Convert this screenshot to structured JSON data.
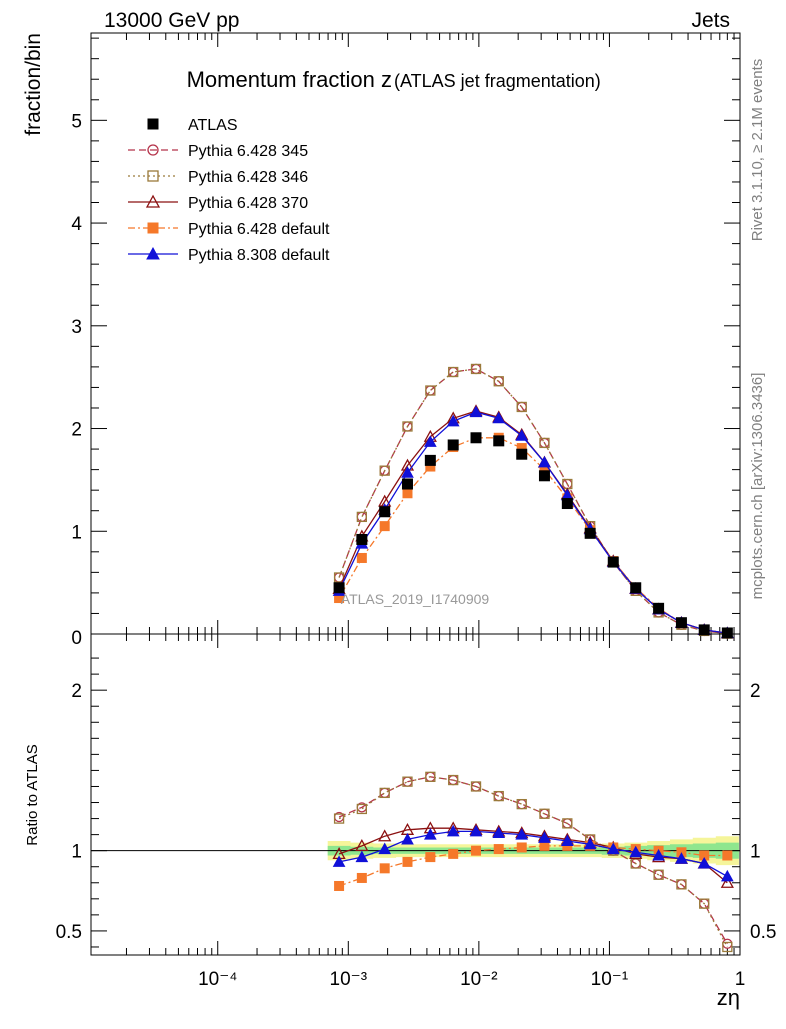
{
  "header": {
    "left": "13000 GeV pp",
    "right": "Jets",
    "side_top": "Rivet 3.1.10, ≥ 2.1M events",
    "side_bottom": "mcplots.cern.ch [arXiv:1306.3436]"
  },
  "chart_data": [
    {
      "type": "scatter",
      "panel": "main",
      "title": "Momentum fraction z",
      "subtitle": "(ATLAS jet fragmentation)",
      "ylabel": "fraction/bin",
      "watermark": "ATLAS_2019_I1740909",
      "xscale": "log",
      "xlim": [
        1.07e-05,
        1.0
      ],
      "ylim": [
        0,
        5.85
      ],
      "yticks": [
        1,
        2,
        3,
        4,
        5
      ],
      "ytick_labels": [
        "1",
        "2",
        "3",
        "4",
        "5"
      ],
      "grid": false,
      "legend_position": "top-left",
      "x": [
        0.00085,
        0.00127,
        0.0019,
        0.00284,
        0.00425,
        0.00636,
        0.00951,
        0.0142,
        0.0213,
        0.0318,
        0.0476,
        0.0712,
        0.107,
        0.159,
        0.238,
        0.356,
        0.532,
        0.8
      ],
      "series": [
        {
          "name": "ATLAS",
          "color": "#000000",
          "marker": "square-filled",
          "dash": "none",
          "values": [
            0.45,
            0.92,
            1.19,
            1.46,
            1.69,
            1.84,
            1.91,
            1.88,
            1.75,
            1.54,
            1.27,
            0.98,
            0.7,
            0.45,
            0.25,
            0.11,
            0.04,
            0.01
          ]
        },
        {
          "name": "Pythia 6.428 345",
          "color": "#b5334a",
          "marker": "circle-open",
          "dash": "7,4",
          "values": [
            0.55,
            1.14,
            1.59,
            2.02,
            2.37,
            2.55,
            2.58,
            2.46,
            2.21,
            1.86,
            1.46,
            1.05,
            0.7,
            0.42,
            0.21,
            0.09,
            0.03,
            0.004
          ]
        },
        {
          "name": "Pythia 6.428 346",
          "color": "#9a7a3a",
          "marker": "square-open",
          "dash": "2,3",
          "values": [
            0.55,
            1.14,
            1.59,
            2.02,
            2.37,
            2.55,
            2.58,
            2.46,
            2.21,
            1.86,
            1.46,
            1.05,
            0.7,
            0.42,
            0.21,
            0.09,
            0.03,
            0.004
          ]
        },
        {
          "name": "Pythia 6.428 370",
          "color": "#8b1010",
          "marker": "triangle-open",
          "dash": "none",
          "values": [
            0.44,
            0.95,
            1.29,
            1.64,
            1.92,
            2.1,
            2.17,
            2.11,
            1.94,
            1.67,
            1.36,
            1.03,
            0.71,
            0.44,
            0.24,
            0.11,
            0.04,
            0.008
          ]
        },
        {
          "name": "Pythia 6.428 default",
          "color": "#f5782a",
          "marker": "square-filled",
          "dash": "7,3,2,3",
          "values": [
            0.35,
            0.74,
            1.05,
            1.37,
            1.63,
            1.82,
            1.91,
            1.91,
            1.81,
            1.6,
            1.32,
            1.01,
            0.71,
            0.45,
            0.25,
            0.11,
            0.04,
            0.01
          ]
        },
        {
          "name": "Pythia 8.308 default",
          "color": "#1010d8",
          "marker": "triangle-filled",
          "dash": "none",
          "values": [
            0.42,
            0.88,
            1.21,
            1.57,
            1.87,
            2.07,
            2.16,
            2.1,
            1.93,
            1.67,
            1.35,
            1.02,
            0.7,
            0.44,
            0.24,
            0.11,
            0.04,
            0.009
          ]
        }
      ]
    },
    {
      "type": "scatter",
      "panel": "ratio",
      "xlabel": "zη",
      "ylabel": "Ratio to ATLAS",
      "xscale": "log",
      "xlim": [
        1.07e-05,
        1.0
      ],
      "ylim": [
        0.35,
        2.35
      ],
      "yticks": [
        0.5,
        1,
        2
      ],
      "ytick_labels": [
        "0.5",
        "1",
        "2"
      ],
      "xticks": [
        0.0001,
        0.001,
        0.01,
        0.1,
        1
      ],
      "xtick_labels": [
        "10⁻⁴",
        "10⁻³",
        "10⁻²",
        "10⁻¹",
        "1"
      ],
      "x": [
        0.00085,
        0.00127,
        0.0019,
        0.00284,
        0.00425,
        0.00636,
        0.00951,
        0.0142,
        0.0213,
        0.0318,
        0.0476,
        0.0712,
        0.107,
        0.159,
        0.238,
        0.356,
        0.532,
        0.8
      ],
      "band_outer_halfwidth": [
        0.06,
        0.05,
        0.045,
        0.04,
        0.04,
        0.04,
        0.04,
        0.04,
        0.04,
        0.04,
        0.04,
        0.04,
        0.045,
        0.05,
        0.06,
        0.07,
        0.08,
        0.09
      ],
      "band_inner_halfwidth": [
        0.03,
        0.025,
        0.02,
        0.02,
        0.02,
        0.02,
        0.02,
        0.02,
        0.02,
        0.02,
        0.02,
        0.02,
        0.025,
        0.03,
        0.035,
        0.04,
        0.045,
        0.05
      ],
      "series": [
        {
          "name": "Pythia 6.428 345",
          "values": [
            1.21,
            1.27,
            1.36,
            1.43,
            1.46,
            1.44,
            1.4,
            1.34,
            1.29,
            1.23,
            1.17,
            1.07,
            1.0,
            0.92,
            0.85,
            0.79,
            0.67,
            0.42
          ]
        },
        {
          "name": "Pythia 6.428 346",
          "values": [
            1.2,
            1.26,
            1.36,
            1.43,
            1.46,
            1.44,
            1.4,
            1.34,
            1.29,
            1.23,
            1.17,
            1.07,
            1.0,
            0.92,
            0.85,
            0.79,
            0.67,
            0.4
          ]
        },
        {
          "name": "Pythia 6.428 370",
          "values": [
            0.98,
            1.03,
            1.09,
            1.13,
            1.14,
            1.14,
            1.13,
            1.12,
            1.11,
            1.09,
            1.07,
            1.05,
            1.02,
            0.98,
            0.96,
            0.95,
            0.92,
            0.8
          ]
        },
        {
          "name": "Pythia 6.428 default",
          "values": [
            0.78,
            0.83,
            0.89,
            0.93,
            0.96,
            0.98,
            1.0,
            1.01,
            1.02,
            1.03,
            1.03,
            1.03,
            1.02,
            1.01,
            1.0,
            0.99,
            0.97,
            0.97
          ]
        },
        {
          "name": "Pythia 8.308 default",
          "values": [
            0.93,
            0.96,
            1.01,
            1.07,
            1.1,
            1.12,
            1.12,
            1.11,
            1.1,
            1.08,
            1.06,
            1.04,
            1.01,
            0.99,
            0.97,
            0.95,
            0.92,
            0.84
          ]
        }
      ]
    }
  ]
}
